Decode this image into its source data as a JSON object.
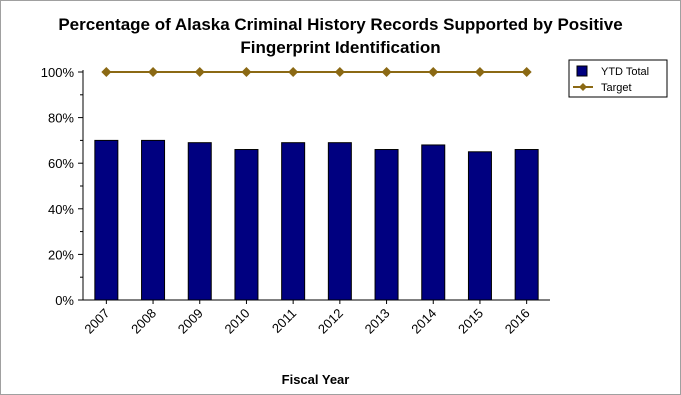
{
  "chart_data": {
    "type": "bar",
    "title_line1": "Percentage of Alaska Criminal History Records Supported by Positive",
    "title_line2": "Fingerprint Identification",
    "xlabel": "Fiscal Year",
    "ylabel": "",
    "categories": [
      "2007",
      "2008",
      "2009",
      "2010",
      "2011",
      "2012",
      "2013",
      "2014",
      "2015",
      "2016"
    ],
    "ylim": [
      0,
      100
    ],
    "yticks": [
      "0%",
      "20%",
      "40%",
      "60%",
      "80%",
      "100%"
    ],
    "ytick_values": [
      0,
      20,
      40,
      60,
      80,
      100
    ],
    "series": [
      {
        "name": "YTD Total",
        "kind": "bar",
        "color": "#000080",
        "values": [
          70,
          70,
          69,
          66,
          69,
          69,
          66,
          68,
          65,
          66
        ]
      },
      {
        "name": "Target",
        "kind": "line",
        "color": "#8B6914",
        "values": [
          100,
          100,
          100,
          100,
          100,
          100,
          100,
          100,
          100,
          100
        ]
      }
    ],
    "legend_position": "top-right",
    "grid": false
  }
}
